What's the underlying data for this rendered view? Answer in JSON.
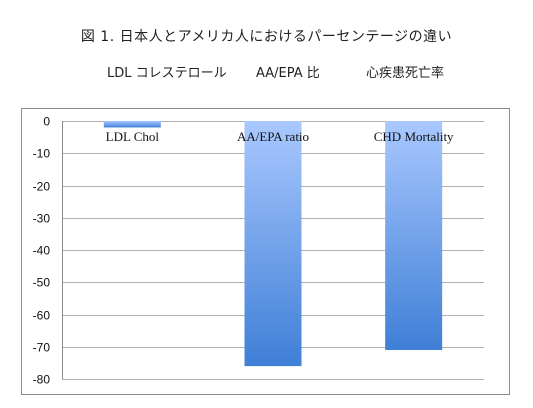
{
  "figure": {
    "title": "図 1. 日本人とアメリカ人におけるパーセンテージの違い",
    "subtitle_items": [
      "LDL コレステロール",
      "AA/EPA 比",
      "心疾患死亡率"
    ]
  },
  "chart_data": {
    "type": "bar",
    "categories": [
      "LDL Chol",
      "AA/EPA ratio",
      "CHD Mortality"
    ],
    "values": [
      -2,
      -76,
      -71
    ],
    "title": "",
    "xlabel": "",
    "ylabel": "",
    "ylim": [
      -80,
      0
    ],
    "yticks": [
      0,
      -10,
      -20,
      -30,
      -40,
      -50,
      -60,
      -70,
      -80
    ],
    "grid": true,
    "legend": "none",
    "bar_color_top": "#a9c8ff",
    "bar_color_bottom": "#3f7fd6",
    "grid_color": "#b0b0b0"
  }
}
